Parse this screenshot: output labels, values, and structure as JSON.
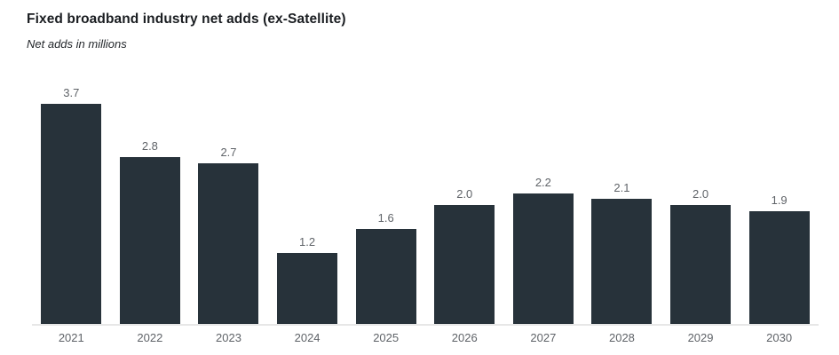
{
  "header": {
    "title": "Fixed broadband industry net adds (ex-Satellite)",
    "subtitle": "Net adds in millions"
  },
  "chart_data": {
    "type": "bar",
    "title": "Fixed broadband industry net adds (ex-Satellite)",
    "subtitle": "Net adds in millions",
    "categories": [
      "2021",
      "2022",
      "2023",
      "2024",
      "2025",
      "2026",
      "2027",
      "2028",
      "2029",
      "2030"
    ],
    "values": [
      3.7,
      2.8,
      2.7,
      1.2,
      1.6,
      2.0,
      2.2,
      2.1,
      2.0,
      1.9
    ],
    "xlabel": "",
    "ylabel": "Net adds in millions",
    "ylim": [
      0,
      4
    ],
    "grid": false,
    "legend": false,
    "value_labels_shown": true,
    "value_label_decimals": 1,
    "colors": {
      "bar": "#27323a",
      "value_label": "#5f6368",
      "tick_label": "#5f6368",
      "baseline": "#e7e7e7",
      "title": "#1a1d21",
      "background": "#ffffff"
    }
  }
}
